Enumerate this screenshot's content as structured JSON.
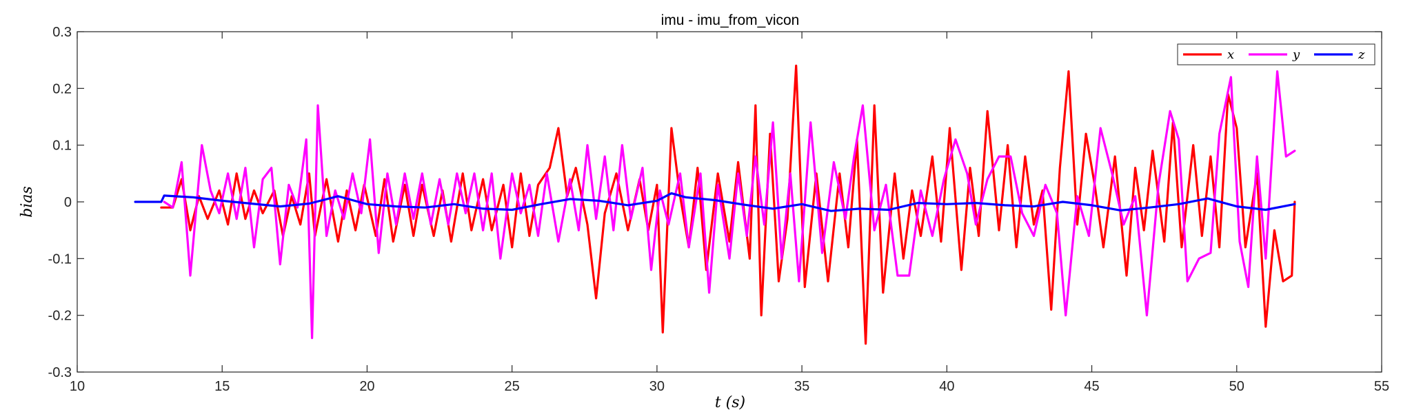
{
  "chart_data": {
    "type": "line",
    "title": "imu - imu_from_vicon",
    "xlabel": "t (s)",
    "ylabel": "bias",
    "xlim": [
      10,
      55
    ],
    "ylim": [
      -0.3,
      0.3
    ],
    "xticks": [
      10,
      15,
      20,
      25,
      30,
      35,
      40,
      45,
      50,
      55
    ],
    "yticks": [
      -0.3,
      -0.2,
      -0.1,
      0,
      0.1,
      0.2,
      0.3
    ],
    "xtick_labels": [
      "10",
      "15",
      "20",
      "25",
      "30",
      "35",
      "40",
      "45",
      "50",
      "55"
    ],
    "ytick_labels": [
      "-0.3",
      "-0.2",
      "-0.1",
      "0",
      "0.1",
      "0.2",
      "0.3"
    ],
    "grid": false,
    "legend_position": "top-right",
    "series": [
      {
        "name": "x",
        "color": "#ff0000",
        "points": [
          [
            12.9,
            -0.01
          ],
          [
            13.3,
            -0.01
          ],
          [
            13.6,
            0.04
          ],
          [
            13.9,
            -0.05
          ],
          [
            14.2,
            0.01
          ],
          [
            14.5,
            -0.03
          ],
          [
            14.9,
            0.02
          ],
          [
            15.2,
            -0.04
          ],
          [
            15.5,
            0.05
          ],
          [
            15.8,
            -0.03
          ],
          [
            16.1,
            0.02
          ],
          [
            16.4,
            -0.02
          ],
          [
            16.8,
            0.02
          ],
          [
            17.1,
            -0.06
          ],
          [
            17.4,
            0.01
          ],
          [
            17.7,
            -0.04
          ],
          [
            18.0,
            0.05
          ],
          [
            18.2,
            -0.06
          ],
          [
            18.6,
            0.04
          ],
          [
            19.0,
            -0.07
          ],
          [
            19.3,
            0.02
          ],
          [
            19.6,
            -0.05
          ],
          [
            19.9,
            0.03
          ],
          [
            20.3,
            -0.06
          ],
          [
            20.6,
            0.04
          ],
          [
            20.9,
            -0.07
          ],
          [
            21.3,
            0.03
          ],
          [
            21.6,
            -0.06
          ],
          [
            21.9,
            0.03
          ],
          [
            22.3,
            -0.06
          ],
          [
            22.6,
            0.02
          ],
          [
            22.9,
            -0.07
          ],
          [
            23.3,
            0.05
          ],
          [
            23.6,
            -0.05
          ],
          [
            24.0,
            0.04
          ],
          [
            24.3,
            -0.05
          ],
          [
            24.7,
            0.03
          ],
          [
            25.0,
            -0.08
          ],
          [
            25.3,
            0.05
          ],
          [
            25.6,
            -0.06
          ],
          [
            25.9,
            0.03
          ],
          [
            26.3,
            0.06
          ],
          [
            26.6,
            0.13
          ],
          [
            26.9,
            0.01
          ],
          [
            27.2,
            0.06
          ],
          [
            27.6,
            -0.04
          ],
          [
            27.9,
            -0.17
          ],
          [
            28.2,
            -0.02
          ],
          [
            28.6,
            0.05
          ],
          [
            29.0,
            -0.05
          ],
          [
            29.4,
            0.04
          ],
          [
            29.7,
            -0.05
          ],
          [
            30.0,
            0.03
          ],
          [
            30.2,
            -0.23
          ],
          [
            30.5,
            0.13
          ],
          [
            30.8,
            0.01
          ],
          [
            31.1,
            -0.08
          ],
          [
            31.4,
            0.06
          ],
          [
            31.7,
            -0.12
          ],
          [
            32.1,
            0.05
          ],
          [
            32.5,
            -0.07
          ],
          [
            32.8,
            0.07
          ],
          [
            33.2,
            -0.1
          ],
          [
            33.4,
            0.17
          ],
          [
            33.6,
            -0.2
          ],
          [
            33.9,
            0.12
          ],
          [
            34.2,
            -0.14
          ],
          [
            34.5,
            -0.03
          ],
          [
            34.8,
            0.24
          ],
          [
            35.1,
            -0.15
          ],
          [
            35.5,
            0.05
          ],
          [
            35.9,
            -0.14
          ],
          [
            36.3,
            0.05
          ],
          [
            36.6,
            -0.08
          ],
          [
            36.9,
            0.11
          ],
          [
            37.2,
            -0.25
          ],
          [
            37.5,
            0.17
          ],
          [
            37.8,
            -0.16
          ],
          [
            38.2,
            0.05
          ],
          [
            38.5,
            -0.1
          ],
          [
            38.8,
            0.02
          ],
          [
            39.1,
            -0.06
          ],
          [
            39.5,
            0.08
          ],
          [
            39.8,
            -0.07
          ],
          [
            40.1,
            0.13
          ],
          [
            40.5,
            -0.12
          ],
          [
            40.8,
            0.06
          ],
          [
            41.1,
            -0.06
          ],
          [
            41.4,
            0.16
          ],
          [
            41.8,
            -0.05
          ],
          [
            42.1,
            0.1
          ],
          [
            42.4,
            -0.08
          ],
          [
            42.7,
            0.08
          ],
          [
            43.0,
            -0.04
          ],
          [
            43.3,
            0.02
          ],
          [
            43.6,
            -0.19
          ],
          [
            43.9,
            0.06
          ],
          [
            44.2,
            0.23
          ],
          [
            44.5,
            -0.04
          ],
          [
            44.8,
            0.12
          ],
          [
            45.1,
            0.03
          ],
          [
            45.4,
            -0.08
          ],
          [
            45.8,
            0.08
          ],
          [
            46.2,
            -0.13
          ],
          [
            46.5,
            0.06
          ],
          [
            46.8,
            -0.05
          ],
          [
            47.1,
            0.09
          ],
          [
            47.5,
            -0.07
          ],
          [
            47.8,
            0.14
          ],
          [
            48.1,
            -0.08
          ],
          [
            48.5,
            0.1
          ],
          [
            48.8,
            -0.06
          ],
          [
            49.1,
            0.08
          ],
          [
            49.4,
            -0.08
          ],
          [
            49.7,
            0.19
          ],
          [
            50.0,
            0.13
          ],
          [
            50.3,
            -0.08
          ],
          [
            50.7,
            0.05
          ],
          [
            51.0,
            -0.22
          ],
          [
            51.3,
            -0.05
          ],
          [
            51.6,
            -0.14
          ],
          [
            51.9,
            -0.13
          ],
          [
            52.0,
            0.0
          ]
        ]
      },
      {
        "name": "y",
        "color": "#ff00ff",
        "points": [
          [
            13.0,
            0.0
          ],
          [
            13.3,
            -0.01
          ],
          [
            13.6,
            0.07
          ],
          [
            13.9,
            -0.13
          ],
          [
            14.3,
            0.1
          ],
          [
            14.6,
            0.02
          ],
          [
            14.9,
            -0.02
          ],
          [
            15.2,
            0.05
          ],
          [
            15.5,
            -0.03
          ],
          [
            15.8,
            0.06
          ],
          [
            16.1,
            -0.08
          ],
          [
            16.4,
            0.04
          ],
          [
            16.7,
            0.06
          ],
          [
            17.0,
            -0.11
          ],
          [
            17.3,
            0.03
          ],
          [
            17.6,
            -0.01
          ],
          [
            17.9,
            0.11
          ],
          [
            18.1,
            -0.24
          ],
          [
            18.3,
            0.17
          ],
          [
            18.6,
            -0.06
          ],
          [
            18.9,
            0.02
          ],
          [
            19.2,
            -0.03
          ],
          [
            19.5,
            0.05
          ],
          [
            19.8,
            -0.02
          ],
          [
            20.1,
            0.11
          ],
          [
            20.4,
            -0.09
          ],
          [
            20.7,
            0.05
          ],
          [
            21.0,
            -0.04
          ],
          [
            21.3,
            0.05
          ],
          [
            21.6,
            -0.03
          ],
          [
            21.9,
            0.05
          ],
          [
            22.2,
            -0.04
          ],
          [
            22.5,
            0.04
          ],
          [
            22.8,
            -0.04
          ],
          [
            23.1,
            0.05
          ],
          [
            23.4,
            -0.02
          ],
          [
            23.7,
            0.05
          ],
          [
            24.0,
            -0.05
          ],
          [
            24.3,
            0.05
          ],
          [
            24.6,
            -0.1
          ],
          [
            25.0,
            0.05
          ],
          [
            25.3,
            -0.02
          ],
          [
            25.6,
            0.03
          ],
          [
            25.9,
            -0.06
          ],
          [
            26.2,
            0.05
          ],
          [
            26.6,
            -0.07
          ],
          [
            27.0,
            0.04
          ],
          [
            27.3,
            -0.05
          ],
          [
            27.6,
            0.1
          ],
          [
            27.9,
            -0.03
          ],
          [
            28.2,
            0.08
          ],
          [
            28.5,
            -0.05
          ],
          [
            28.8,
            0.1
          ],
          [
            29.1,
            -0.03
          ],
          [
            29.5,
            0.06
          ],
          [
            29.8,
            -0.12
          ],
          [
            30.1,
            0.02
          ],
          [
            30.4,
            -0.04
          ],
          [
            30.8,
            0.05
          ],
          [
            31.1,
            -0.08
          ],
          [
            31.5,
            0.05
          ],
          [
            31.8,
            -0.16
          ],
          [
            32.1,
            0.03
          ],
          [
            32.5,
            -0.1
          ],
          [
            32.8,
            0.05
          ],
          [
            33.1,
            -0.06
          ],
          [
            33.4,
            0.08
          ],
          [
            33.7,
            -0.04
          ],
          [
            34.0,
            0.14
          ],
          [
            34.3,
            -0.1
          ],
          [
            34.6,
            0.05
          ],
          [
            34.9,
            -0.14
          ],
          [
            35.3,
            0.14
          ],
          [
            35.7,
            -0.09
          ],
          [
            36.1,
            0.07
          ],
          [
            36.5,
            -0.03
          ],
          [
            36.8,
            0.08
          ],
          [
            37.1,
            0.17
          ],
          [
            37.5,
            -0.05
          ],
          [
            37.9,
            0.03
          ],
          [
            38.3,
            -0.13
          ],
          [
            38.7,
            -0.13
          ],
          [
            39.1,
            0.02
          ],
          [
            39.5,
            -0.06
          ],
          [
            39.9,
            0.04
          ],
          [
            40.3,
            0.11
          ],
          [
            40.7,
            0.05
          ],
          [
            41.0,
            -0.04
          ],
          [
            41.4,
            0.04
          ],
          [
            41.8,
            0.08
          ],
          [
            42.2,
            0.08
          ],
          [
            42.6,
            -0.02
          ],
          [
            43.0,
            -0.06
          ],
          [
            43.4,
            0.03
          ],
          [
            43.8,
            -0.02
          ],
          [
            44.1,
            -0.2
          ],
          [
            44.5,
            0.01
          ],
          [
            44.9,
            -0.06
          ],
          [
            45.3,
            0.13
          ],
          [
            45.7,
            0.05
          ],
          [
            46.1,
            -0.04
          ],
          [
            46.5,
            0.01
          ],
          [
            46.9,
            -0.2
          ],
          [
            47.3,
            0.03
          ],
          [
            47.7,
            0.16
          ],
          [
            48.0,
            0.11
          ],
          [
            48.3,
            -0.14
          ],
          [
            48.7,
            -0.1
          ],
          [
            49.1,
            -0.09
          ],
          [
            49.4,
            0.12
          ],
          [
            49.8,
            0.22
          ],
          [
            50.1,
            -0.07
          ],
          [
            50.4,
            -0.15
          ],
          [
            50.7,
            0.08
          ],
          [
            51.0,
            -0.1
          ],
          [
            51.4,
            0.23
          ],
          [
            51.7,
            0.08
          ],
          [
            52.0,
            0.09
          ]
        ]
      },
      {
        "name": "z",
        "color": "#0000ff",
        "points": [
          [
            12.0,
            0.0
          ],
          [
            12.9,
            0.0
          ],
          [
            13.0,
            0.011
          ],
          [
            14.0,
            0.008
          ],
          [
            15.0,
            0.002
          ],
          [
            16.0,
            -0.003
          ],
          [
            17.0,
            -0.008
          ],
          [
            18.0,
            -0.003
          ],
          [
            19.0,
            0.01
          ],
          [
            20.0,
            -0.004
          ],
          [
            21.0,
            -0.008
          ],
          [
            22.0,
            -0.01
          ],
          [
            23.0,
            -0.004
          ],
          [
            24.0,
            -0.012
          ],
          [
            25.0,
            -0.014
          ],
          [
            26.0,
            -0.004
          ],
          [
            27.0,
            0.005
          ],
          [
            28.0,
            0.002
          ],
          [
            29.0,
            -0.006
          ],
          [
            30.0,
            0.002
          ],
          [
            30.5,
            0.015
          ],
          [
            31.0,
            0.008
          ],
          [
            32.0,
            0.003
          ],
          [
            33.0,
            -0.005
          ],
          [
            34.0,
            -0.012
          ],
          [
            35.0,
            -0.004
          ],
          [
            36.0,
            -0.016
          ],
          [
            37.0,
            -0.012
          ],
          [
            38.0,
            -0.014
          ],
          [
            39.0,
            -0.002
          ],
          [
            40.0,
            -0.004
          ],
          [
            41.0,
            -0.002
          ],
          [
            42.0,
            -0.006
          ],
          [
            43.0,
            -0.008
          ],
          [
            44.0,
            0.0
          ],
          [
            45.0,
            -0.006
          ],
          [
            46.0,
            -0.015
          ],
          [
            47.0,
            -0.01
          ],
          [
            48.0,
            -0.004
          ],
          [
            49.0,
            0.006
          ],
          [
            50.0,
            -0.008
          ],
          [
            51.0,
            -0.014
          ],
          [
            52.0,
            -0.004
          ]
        ]
      }
    ]
  }
}
